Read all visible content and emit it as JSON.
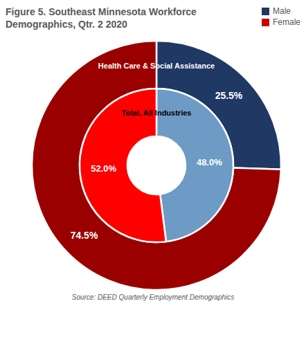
{
  "chart_data": {
    "type": "pie",
    "title": "Figure 5. Southeast Minnesota Workforce",
    "subtitle": "Demographics, Qtr. 2 2020",
    "categories": [
      "Male",
      "Female"
    ],
    "colors": [
      "#1f3864",
      "#cc0000"
    ],
    "series": [
      {
        "name": "Health Care & Social Assistance",
        "colors": [
          "#1f3864",
          "#9b0000"
        ],
        "values": [
          25.5,
          74.5
        ],
        "value_labels": [
          "25.5%",
          "74.5%"
        ]
      },
      {
        "name": "Total, All Industries",
        "colors": [
          "#6e9bc5",
          "#ff0000"
        ],
        "values": [
          48.0,
          52.0
        ],
        "value_labels": [
          "48.0%",
          "52.0%"
        ]
      }
    ],
    "data_labels": true,
    "legend": "upper right",
    "annotations": [
      "Source: DEED Quarterly Employment Demographics"
    ]
  }
}
